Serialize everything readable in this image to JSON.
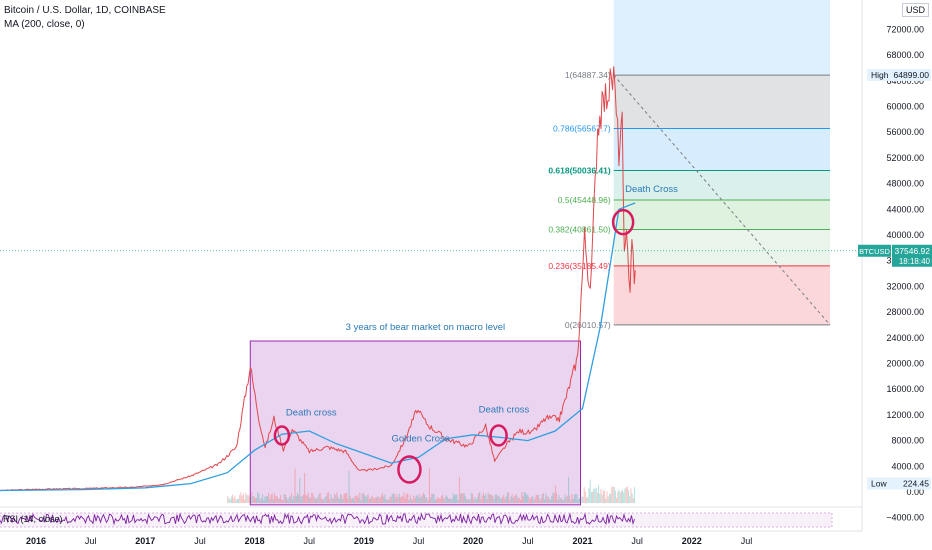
{
  "header": {
    "title": "Bitcoin / U.S. Dollar, 1D, COINBASE",
    "indicator": "MA (200, close, 0)",
    "currency": "USD"
  },
  "colors": {
    "price_line": "#e0474c",
    "price_line_up": "#26a69a",
    "ma_line": "#2f9fe0",
    "bear_box": "#9c27b0",
    "circle": "#d81b60",
    "annotation_text": "#2a7ab8",
    "rsi_line": "#7b1fa2",
    "fib_1": "#787b86",
    "fib_0786": "#2196f3",
    "fib_0618": "#089981",
    "fib_05": "#4caf50",
    "fib_0382": "#4caf50",
    "fib_0236": "#f23645",
    "fib_0": "#787b86"
  },
  "axis": {
    "y_ticks": [
      "72000.00",
      "68000.00",
      "64000.00",
      "60000.00",
      "56000.00",
      "52000.00",
      "48000.00",
      "44000.00",
      "40000.00",
      "36000.00",
      "32000.00",
      "28000.00",
      "24000.00",
      "20000.00",
      "16000.00",
      "12000.00",
      "8000.00",
      "4000.00",
      "0.00",
      "−4000.00"
    ],
    "x_ticks": [
      "2016",
      "Jul",
      "2017",
      "Jul",
      "2018",
      "Jul",
      "2019",
      "Jul",
      "2020",
      "Jul",
      "2021",
      "Jul",
      "2022",
      "Jul"
    ],
    "high_label": "High",
    "high_value": "64899.00",
    "low_label": "Low",
    "low_value": "224.45",
    "last_symbol": "BTCUSD",
    "last_price": "37546.92",
    "last_time": "18:18:40"
  },
  "fib_levels": [
    {
      "ratio": "1",
      "price": 64887.34,
      "label": "1(64887.34)"
    },
    {
      "ratio": "0.786",
      "price": 56567.7,
      "label": "0.786(56567.7)"
    },
    {
      "ratio": "0.618",
      "price": 50036.41,
      "label": "0.618(50036.41)"
    },
    {
      "ratio": "0.5",
      "price": 45448.96,
      "label": "0.5(45448.96)"
    },
    {
      "ratio": "0.382",
      "price": 40861.5,
      "label": "0.382(40861.50)"
    },
    {
      "ratio": "0.236",
      "price": 35185.49,
      "label": "0.236(35185.49)"
    },
    {
      "ratio": "0",
      "price": 26010.57,
      "label": "0(26010.57)"
    }
  ],
  "annotations": {
    "bear_market": "3 years of bear market on macro level",
    "death_cross_1": "Death cross",
    "golden_cross": "Golden Cross",
    "death_cross_2": "Death cross",
    "death_cross_3": "Death Cross"
  },
  "rsi_label": "RSI (14, close)",
  "chart_data": {
    "type": "line",
    "title": "Bitcoin / U.S. Dollar, 1D, COINBASE",
    "xlabel": "",
    "ylabel": "",
    "ylim": [
      -7000,
      75000
    ],
    "xlim": [
      "2015-09",
      "2022-10"
    ],
    "grid": false,
    "series": [
      {
        "name": "Bitcoin / U.S. Dollar",
        "x": [
          "2015-09-01",
          "2016-01-01",
          "2016-06-01",
          "2016-12-01",
          "2017-03-01",
          "2017-06-01",
          "2017-09-01",
          "2017-11-01",
          "2017-12-17",
          "2018-01-15",
          "2018-02-06",
          "2018-03-05",
          "2018-04-06",
          "2018-05-05",
          "2018-07-01",
          "2018-09-01",
          "2018-11-01",
          "2018-12-15",
          "2019-02-01",
          "2019-04-01",
          "2019-05-15",
          "2019-06-26",
          "2019-08-01",
          "2019-10-01",
          "2019-12-15",
          "2020-02-12",
          "2020-03-12",
          "2020-04-15",
          "2020-06-01",
          "2020-07-15",
          "2020-09-01",
          "2020-10-15",
          "2020-11-15",
          "2020-12-15",
          "2021-01-08",
          "2021-01-27",
          "2021-02-21",
          "2021-03-13",
          "2021-04-14",
          "2021-05-01",
          "2021-05-12",
          "2021-05-19",
          "2021-05-26",
          "2021-06-08",
          "2021-06-14",
          "2021-06-22",
          "2021-06-25"
        ],
        "values": [
          230,
          430,
          530,
          760,
          1200,
          2500,
          4300,
          7000,
          19600,
          11500,
          6900,
          11500,
          6600,
          9800,
          6300,
          7000,
          6300,
          3300,
          3500,
          4100,
          8000,
          12800,
          10500,
          8300,
          7100,
          10300,
          4800,
          7000,
          9500,
          9200,
          11500,
          11400,
          16000,
          21000,
          40000,
          30500,
          57000,
          61000,
          64800,
          53000,
          57000,
          36000,
          39500,
          32000,
          40400,
          32000,
          34500
        ]
      },
      {
        "name": "MA (200, close, 0)",
        "x": [
          "2015-09-01",
          "2016-06-01",
          "2017-01-01",
          "2017-06-01",
          "2017-10-01",
          "2018-01-01",
          "2018-04-01",
          "2018-07-01",
          "2018-10-01",
          "2019-01-01",
          "2019-04-01",
          "2019-07-01",
          "2019-10-01",
          "2020-01-01",
          "2020-04-01",
          "2020-07-01",
          "2020-10-01",
          "2021-01-01",
          "2021-03-01",
          "2021-05-01",
          "2021-06-25"
        ],
        "values": [
          230,
          380,
          650,
          1300,
          3000,
          6500,
          9000,
          9500,
          7500,
          6000,
          4500,
          5400,
          8300,
          8900,
          8500,
          8000,
          9500,
          13000,
          26000,
          44000,
          45000
        ]
      }
    ],
    "fibonacci": {
      "from": {
        "x": "2021-04-14",
        "y": 64887.34
      },
      "to": {
        "x": "2022-10",
        "y": 26010.57
      },
      "levels": [
        1,
        0.786,
        0.618,
        0.5,
        0.382,
        0.236,
        0
      ]
    }
  }
}
